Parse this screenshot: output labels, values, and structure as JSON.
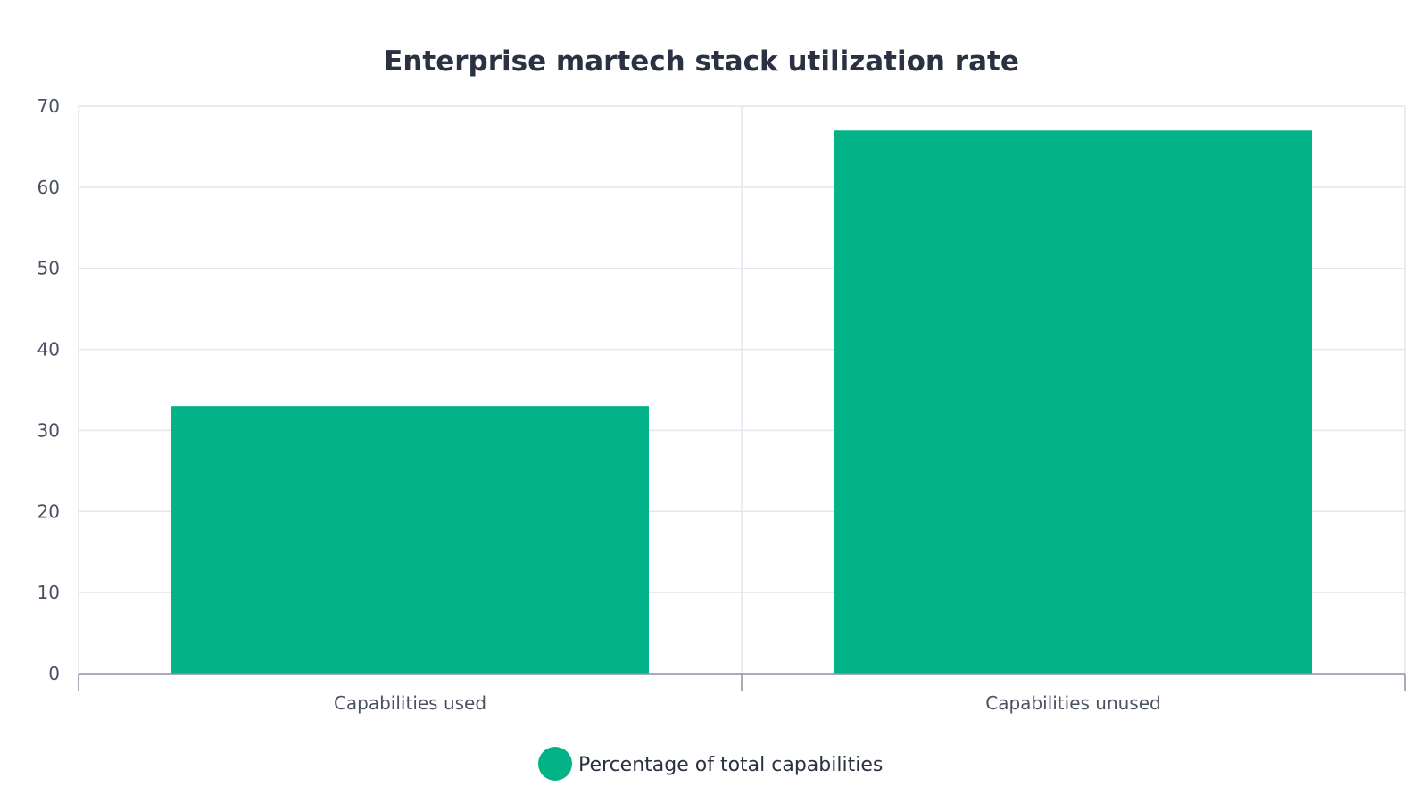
{
  "chart_data": {
    "type": "bar",
    "title": "Enterprise martech stack utilization rate",
    "categories": [
      "Capabilities used",
      "Capabilities unused"
    ],
    "series": [
      {
        "name": "Percentage of total capabilities",
        "values": [
          33,
          67
        ],
        "color": "#02b388"
      }
    ],
    "xlabel": "",
    "ylabel": "",
    "ylim": [
      0,
      70
    ],
    "yticks": [
      0,
      10,
      20,
      30,
      40,
      50,
      60,
      70
    ],
    "grid": true,
    "legend_position": "bottom-center"
  }
}
